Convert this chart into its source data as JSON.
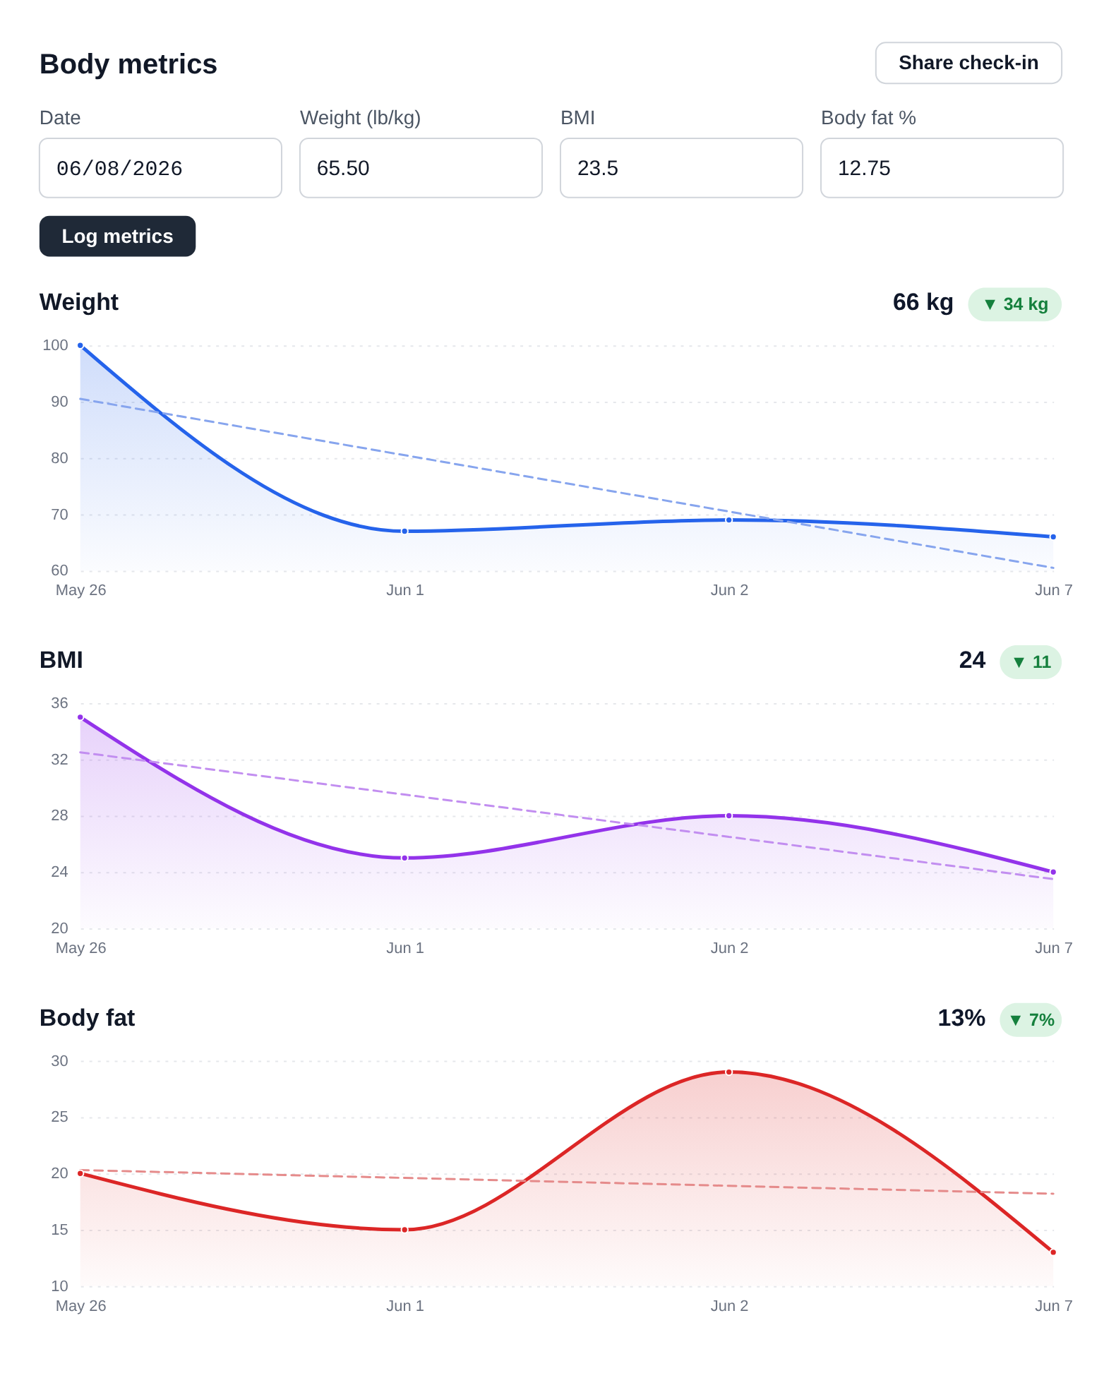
{
  "chart_data": [
    {
      "type": "other",
      "title": "Body metrics",
      "annotations": [
        "Share check-in",
        "Date",
        "06/08/2026",
        "Weight (lb/kg)",
        "65.50",
        "BMI",
        "23.5",
        "Body fat %",
        "12.75",
        "Log metrics"
      ]
    },
    {
      "type": "area",
      "title": "Weight",
      "annotations": [
        "66 kg",
        "▼ 34 kg"
      ],
      "categories": [
        "May 26",
        "Jun 1",
        "Jun 2",
        "Jun 7"
      ],
      "marker": "circle",
      "series": [
        {
          "color": "#2563eb",
          "values": [
            100,
            67,
            69,
            66
          ]
        },
        {
          "type": "line",
          "color": "#87a5ee",
          "values": [
            90.5,
            80.5,
            70.5,
            60.5
          ],
          "line_style": "dashed",
          "marker": "none"
        }
      ],
      "ylim": [
        60,
        100
      ],
      "yticks": [
        60,
        70,
        80,
        90,
        100
      ],
      "grid": "y"
    },
    {
      "type": "area",
      "title": "BMI",
      "annotations": [
        "24",
        "▼ 11"
      ],
      "categories": [
        "May 26",
        "Jun 1",
        "Jun 2",
        "Jun 7"
      ],
      "marker": "circle",
      "series": [
        {
          "color": "#9333ea",
          "values": [
            35,
            25,
            28,
            24
          ]
        },
        {
          "type": "line",
          "color": "#c28ef0",
          "values": [
            32.5,
            29.5,
            26.5,
            23.5
          ],
          "line_style": "dashed",
          "marker": "none"
        }
      ],
      "ylim": [
        20,
        36
      ],
      "yticks": [
        20,
        24,
        28,
        32,
        36
      ],
      "grid": "y"
    },
    {
      "type": "area",
      "title": "Body fat",
      "annotations": [
        "13%",
        "▼ 7%"
      ],
      "categories": [
        "May 26",
        "Jun 1",
        "Jun 2",
        "Jun 7"
      ],
      "marker": "circle",
      "series": [
        {
          "color": "#dc2626",
          "values": [
            20,
            15,
            29,
            13
          ]
        },
        {
          "type": "line",
          "color": "#e58b8b",
          "values": [
            20.3,
            19.6,
            18.9,
            18.2
          ],
          "line_style": "dashed",
          "marker": "none"
        }
      ],
      "ylim": [
        10,
        30
      ],
      "yticks": [
        10,
        15,
        20,
        25,
        30
      ],
      "grid": "y"
    }
  ]
}
